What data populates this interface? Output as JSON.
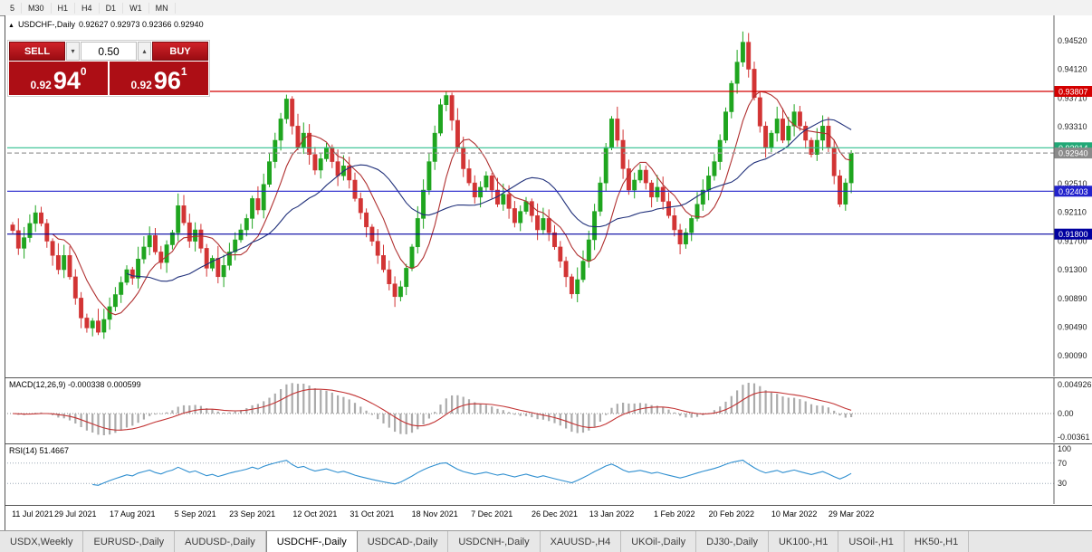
{
  "toolbar": {
    "timeframes": [
      "5",
      "M30",
      "H1",
      "H4",
      "D1",
      "W1",
      "MN"
    ]
  },
  "chart": {
    "header": {
      "symbol": "USDCHF-,Daily",
      "ohlc": "0.92627 0.92973 0.92366 0.92940"
    },
    "trade_panel": {
      "sell_label": "SELL",
      "buy_label": "BUY",
      "volume": "0.50",
      "sell_price_prefix": "0.92",
      "sell_price_big": "94",
      "sell_price_sup": "0",
      "buy_price_prefix": "0.92",
      "buy_price_big": "96",
      "buy_price_sup": "1"
    }
  },
  "chart_data": {
    "type": "candlestick",
    "symbol": "USDCHF",
    "timeframe": "Daily",
    "y_range": [
      0.899,
      0.948
    ],
    "y_ticks": [
      0.9452,
      0.9412,
      0.9371,
      0.9331,
      0.9291,
      0.9251,
      0.9211,
      0.917,
      0.913,
      0.9089,
      0.9049,
      0.9009
    ],
    "x_labels": [
      "11 Jul 2021",
      "29 Jul 2021",
      "17 Aug 2021",
      "5 Sep 2021",
      "23 Sep 2021",
      "12 Oct 2021",
      "31 Oct 2021",
      "18 Nov 2021",
      "7 Dec 2021",
      "26 Dec 2021",
      "13 Jan 2022",
      "1 Feb 2022",
      "20 Feb 2022",
      "10 Mar 2022",
      "29 Mar 2022"
    ],
    "closes": [
      0.9185,
      0.916,
      0.9175,
      0.9195,
      0.921,
      0.9195,
      0.917,
      0.915,
      0.913,
      0.915,
      0.912,
      0.909,
      0.9062,
      0.9048,
      0.9058,
      0.9042,
      0.906,
      0.9078,
      0.9095,
      0.9112,
      0.913,
      0.9118,
      0.9145,
      0.9162,
      0.9178,
      0.9155,
      0.914,
      0.9165,
      0.9182,
      0.922,
      0.9196,
      0.917,
      0.9186,
      0.916,
      0.9132,
      0.9146,
      0.912,
      0.9136,
      0.9155,
      0.9172,
      0.9186,
      0.9202,
      0.923,
      0.9214,
      0.925,
      0.9282,
      0.9312,
      0.9342,
      0.937,
      0.9332,
      0.9302,
      0.9322,
      0.9292,
      0.927,
      0.9286,
      0.9302,
      0.9282,
      0.9262,
      0.9276,
      0.9256,
      0.923,
      0.921,
      0.919,
      0.917,
      0.915,
      0.913,
      0.911,
      0.9092,
      0.9106,
      0.9132,
      0.9162,
      0.9202,
      0.9242,
      0.9282,
      0.9322,
      0.9362,
      0.9375,
      0.934,
      0.9302,
      0.9272,
      0.9252,
      0.9232,
      0.9246,
      0.9262,
      0.9242,
      0.9222,
      0.9236,
      0.9216,
      0.9196,
      0.9212,
      0.9226,
      0.9206,
      0.9186,
      0.9202,
      0.9182,
      0.9162,
      0.9142,
      0.912,
      0.9096,
      0.9116,
      0.9142,
      0.9172,
      0.9212,
      0.9252,
      0.9302,
      0.9342,
      0.9312,
      0.9272,
      0.9242,
      0.9256,
      0.927,
      0.9252,
      0.9232,
      0.9246,
      0.9226,
      0.9206,
      0.9186,
      0.9166,
      0.9182,
      0.9202,
      0.9222,
      0.9242,
      0.9262,
      0.9282,
      0.9312,
      0.9352,
      0.9392,
      0.9422,
      0.945,
      0.9412,
      0.9372,
      0.9332,
      0.9302,
      0.9322,
      0.9342,
      0.9312,
      0.9332,
      0.9352,
      0.9332,
      0.9312,
      0.9292,
      0.9312,
      0.9332,
      0.9302,
      0.9262,
      0.9222,
      0.9252,
      0.9294
    ],
    "levels": [
      {
        "price": 0.93807,
        "color": "#d40000",
        "style": "solid",
        "label_bg": "#d40000",
        "label_fg": "#ffffff"
      },
      {
        "price": 0.93014,
        "color": "#2fbf8f",
        "style": "solid",
        "label_bg": "#21a876",
        "label_fg": "#ffffff"
      },
      {
        "price": 0.9294,
        "color": "#9a9a9a",
        "style": "dashed",
        "label_bg": "#8a8a8a",
        "label_fg": "#ffffff"
      },
      {
        "price": 0.92403,
        "color": "#2222cc",
        "style": "solid",
        "label_bg": "#2222cc",
        "label_fg": "#ffffff"
      },
      {
        "price": 0.918,
        "color": "#0000a0",
        "style": "solid",
        "label_bg": "#0000a0",
        "label_fg": "#ffffff"
      }
    ],
    "overlays": [
      {
        "name": "ma-fast",
        "period": 8,
        "color": "#b03030"
      },
      {
        "name": "ma-slow",
        "period": 21,
        "color": "#20307a"
      }
    ],
    "colors": {
      "up": "#1fa51f",
      "down": "#d23434",
      "macd_hist": "#ababab",
      "macd_signal": "#c23333",
      "rsi": "#2f8fd0",
      "axis_text": "#222222"
    },
    "macd": {
      "label": "MACD(12,26,9) -0.000338 0.000599",
      "axis_labels": [
        "0.004926",
        "0.00",
        "-0.00361"
      ],
      "axis_max": 0.004926,
      "axis_min": -0.00361
    },
    "rsi": {
      "label": "RSI(14) 51.4667",
      "axis_labels": [
        "100",
        "70",
        "30"
      ],
      "level_lines": [
        70,
        30
      ]
    }
  },
  "tab_bar": {
    "active_index": 3,
    "tabs": [
      "USDX,Weekly",
      "EURUSD-,Daily",
      "AUDUSD-,Daily",
      "USDCHF-,Daily",
      "USDCAD-,Daily",
      "USDCNH-,Daily",
      "XAUUSD-,H4",
      "UKOil-,Daily",
      "DJ30-,Daily",
      "UK100-,H1",
      "USOil-,H1",
      "HK50-,H1"
    ]
  }
}
